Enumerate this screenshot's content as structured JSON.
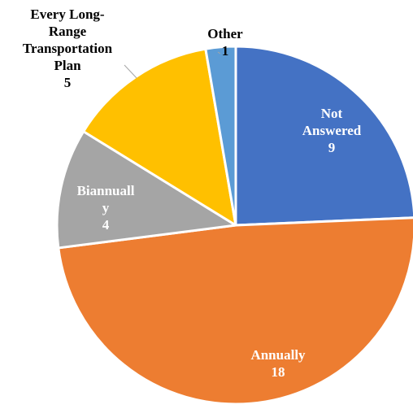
{
  "chart_data": {
    "type": "pie",
    "title": "",
    "slices": [
      {
        "category": "Not Answered",
        "label_lines": [
          "Not",
          "Answered"
        ],
        "value": 9,
        "color": "#4472C4",
        "label_placement": "inside"
      },
      {
        "category": "Annually",
        "label_lines": [
          "Annually"
        ],
        "value": 18,
        "color": "#ED7D31",
        "label_placement": "inside"
      },
      {
        "category": "Biannually",
        "label_lines": [
          "Biannuall",
          "y"
        ],
        "value": 4,
        "color": "#A5A5A5",
        "label_placement": "inside"
      },
      {
        "category": "Every Long-Range Transportation Plan",
        "label_lines": [
          "Every Long-",
          "Range",
          "Transportation",
          "Plan"
        ],
        "value": 5,
        "color": "#FFC000",
        "label_placement": "outside"
      },
      {
        "category": "Other",
        "label_lines": [
          "Other"
        ],
        "value": 1,
        "color": "#5B9BD5",
        "label_placement": "outside"
      }
    ],
    "start": "12 o'clock",
    "direction": "clockwise",
    "legend": "none"
  }
}
